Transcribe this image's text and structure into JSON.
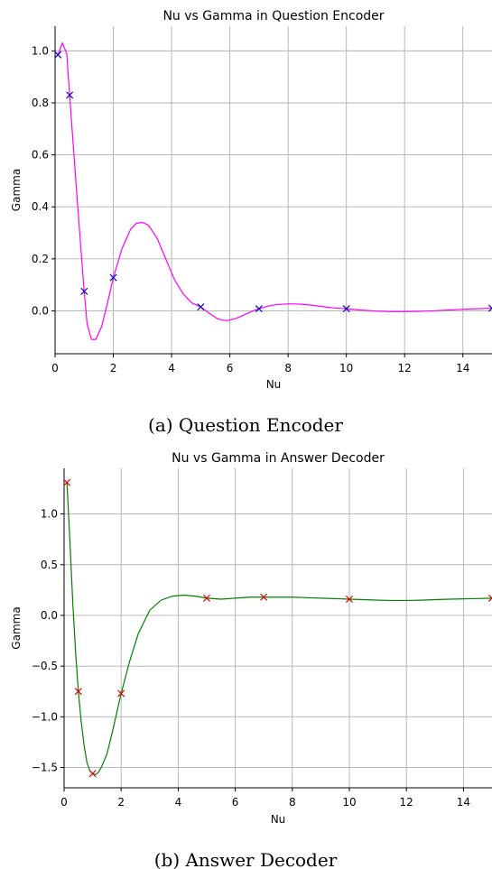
{
  "chart_data": [
    {
      "type": "line",
      "title": "Nu vs Gamma in Question Encoder",
      "xlabel": "Nu",
      "ylabel": "Gamma",
      "caption": "(a) Question Encoder",
      "xlim": [
        0,
        15
      ],
      "ylim": [
        -0.165,
        1.095
      ],
      "xticks": [
        0,
        2,
        4,
        6,
        8,
        10,
        12,
        14
      ],
      "yticks": [
        0.0,
        0.2,
        0.4,
        0.6,
        0.8,
        1.0
      ],
      "ytick_labels": [
        "0.0",
        "0.2",
        "0.4",
        "0.6",
        "0.8",
        "1.0"
      ],
      "grid": true,
      "line_color": "#ff00ff",
      "marker_color": "#0000cc",
      "marker": "x",
      "points": {
        "x": [
          0.1,
          0.5,
          1,
          2,
          5,
          7,
          10,
          15
        ],
        "y": [
          0.985,
          0.83,
          0.075,
          0.128,
          0.015,
          0.008,
          0.008,
          0.01
        ]
      },
      "curve": {
        "x": [
          0.1,
          0.25,
          0.4,
          0.5,
          0.7,
          0.9,
          1.0,
          1.1,
          1.25,
          1.4,
          1.6,
          1.8,
          2.0,
          2.3,
          2.6,
          2.8,
          3.0,
          3.2,
          3.5,
          3.8,
          4.1,
          4.4,
          4.7,
          5.0,
          5.3,
          5.6,
          5.9,
          6.2,
          6.5,
          6.8,
          7.0,
          7.3,
          7.6,
          8.0,
          8.4,
          8.8,
          9.2,
          9.6,
          10.0,
          10.5,
          11.0,
          11.5,
          12.0,
          12.5,
          13.0,
          13.5,
          14.0,
          14.5,
          15.0
        ],
        "y": [
          0.985,
          1.03,
          0.99,
          0.83,
          0.52,
          0.22,
          0.075,
          -0.05,
          -0.11,
          -0.11,
          -0.06,
          0.03,
          0.128,
          0.24,
          0.315,
          0.337,
          0.34,
          0.33,
          0.28,
          0.2,
          0.12,
          0.065,
          0.03,
          0.015,
          -0.01,
          -0.032,
          -0.038,
          -0.03,
          -0.015,
          0.0,
          0.008,
          0.018,
          0.024,
          0.027,
          0.026,
          0.022,
          0.016,
          0.011,
          0.008,
          0.003,
          -0.001,
          -0.003,
          -0.003,
          -0.002,
          0.0,
          0.003,
          0.006,
          0.008,
          0.01
        ]
      }
    },
    {
      "type": "line",
      "title": "Nu vs Gamma in Answer Decoder",
      "xlabel": "Nu",
      "ylabel": "Gamma",
      "caption": "(b) Answer Decoder",
      "xlim": [
        0,
        15
      ],
      "ylim": [
        -1.7,
        1.45
      ],
      "xticks": [
        0,
        2,
        4,
        6,
        8,
        10,
        12,
        14
      ],
      "yticks": [
        -1.5,
        -1.0,
        -0.5,
        0.0,
        0.5,
        1.0
      ],
      "ytick_labels": [
        "−1.5",
        "−1.0",
        "−0.5",
        "0.0",
        "0.5",
        "1.0"
      ],
      "grid": true,
      "line_color": "#008000",
      "marker_color": "#dd0000",
      "marker": "x",
      "points": {
        "x": [
          0.1,
          0.5,
          1,
          2,
          5,
          7,
          10,
          15
        ],
        "y": [
          1.31,
          -0.75,
          -1.56,
          -0.77,
          0.17,
          0.18,
          0.16,
          0.17
        ]
      },
      "curve": {
        "x": [
          0.1,
          0.2,
          0.3,
          0.4,
          0.5,
          0.6,
          0.7,
          0.8,
          0.9,
          1.0,
          1.1,
          1.2,
          1.3,
          1.5,
          1.7,
          2.0,
          2.3,
          2.6,
          3.0,
          3.4,
          3.8,
          4.2,
          4.6,
          5.0,
          5.5,
          6.0,
          6.5,
          7.0,
          7.5,
          8.0,
          8.5,
          9.0,
          9.5,
          10.0,
          10.5,
          11.0,
          11.5,
          12.0,
          12.5,
          13.0,
          13.5,
          14.0,
          14.5,
          15.0
        ],
        "y": [
          1.31,
          0.75,
          0.15,
          -0.35,
          -0.75,
          -1.05,
          -1.28,
          -1.45,
          -1.53,
          -1.56,
          -1.57,
          -1.55,
          -1.5,
          -1.37,
          -1.14,
          -0.77,
          -0.45,
          -0.18,
          0.05,
          0.15,
          0.19,
          0.2,
          0.19,
          0.17,
          0.16,
          0.17,
          0.18,
          0.18,
          0.18,
          0.18,
          0.175,
          0.17,
          0.165,
          0.16,
          0.155,
          0.15,
          0.147,
          0.147,
          0.15,
          0.155,
          0.16,
          0.163,
          0.166,
          0.17
        ]
      }
    }
  ]
}
